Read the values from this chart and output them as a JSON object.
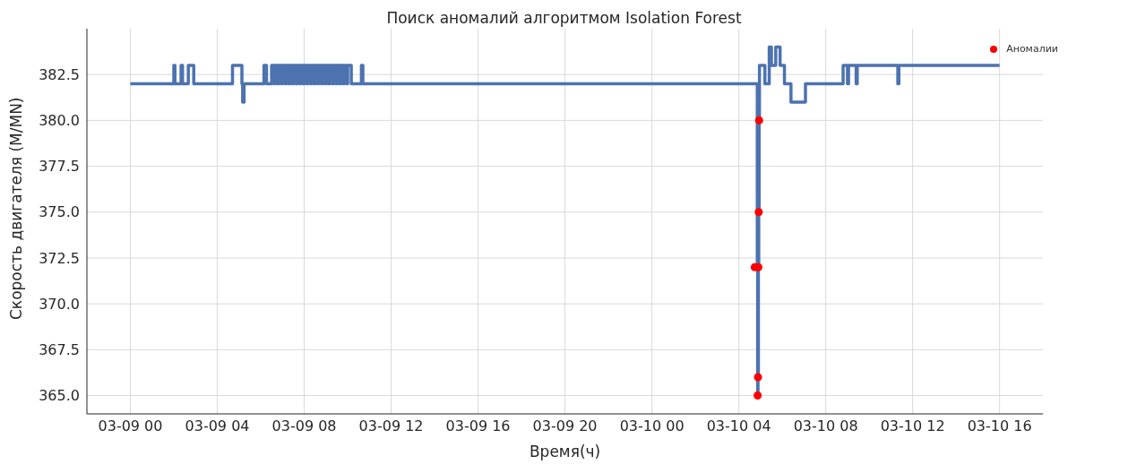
{
  "chart_data": {
    "type": "step",
    "title": "Поиск аномалий алгоритмом Isolation Forest",
    "xlabel": "Время(ч)",
    "ylabel": "Скорость двигателя (M/MN)",
    "xlim": [
      "--03-08T22:00",
      "--03-10T18:00"
    ],
    "xticks": [
      {
        "value": "--03-09T00:00",
        "label": "03-09 00"
      },
      {
        "value": "--03-09T04:00",
        "label": "03-09 04"
      },
      {
        "value": "--03-09T08:00",
        "label": "03-09 08"
      },
      {
        "value": "--03-09T12:00",
        "label": "03-09 12"
      },
      {
        "value": "--03-09T16:00",
        "label": "03-09 16"
      },
      {
        "value": "--03-09T20:00",
        "label": "03-09 20"
      },
      {
        "value": "--03-10T00:00",
        "label": "03-10 00"
      },
      {
        "value": "--03-10T04:00",
        "label": "03-10 04"
      },
      {
        "value": "--03-10T08:00",
        "label": "03-10 08"
      },
      {
        "value": "--03-10T12:00",
        "label": "03-10 12"
      },
      {
        "value": "--03-10T16:00",
        "label": "03-10 16"
      }
    ],
    "ylim": [
      364,
      385
    ],
    "yticks": [
      {
        "value": 365,
        "label": "365.0"
      },
      {
        "value": 367.5,
        "label": "367.5"
      },
      {
        "value": 370,
        "label": "370.0"
      },
      {
        "value": 372.5,
        "label": "372.5"
      },
      {
        "value": 375,
        "label": "375.0"
      },
      {
        "value": 377.5,
        "label": "377.5"
      },
      {
        "value": 380,
        "label": "380.0"
      },
      {
        "value": 382.5,
        "label": "382.5"
      }
    ],
    "grid": true,
    "legend": "top right",
    "series": [
      {
        "color": "#4c72b0",
        "x": [
          "--03-09T00:00",
          "--03-09T02:00",
          "--03-09T02:03",
          "--03-09T02:20",
          "--03-09T02:24",
          "--03-09T02:40",
          "--03-09T02:55",
          "--03-09T04:42",
          "--03-09T05:08",
          "--03-09T05:10",
          "--03-09T05:14",
          "--03-09T06:09",
          "--03-09T06:16",
          "--03-09T06:30",
          "--03-09T06:37",
          "--03-09T06:40",
          "--03-09T06:47",
          "--03-09T06:50",
          "--03-09T06:57",
          "--03-09T07:00",
          "--03-09T07:07",
          "--03-09T07:10",
          "--03-09T07:17",
          "--03-09T07:20",
          "--03-09T07:27",
          "--03-09T07:30",
          "--03-09T07:37",
          "--03-09T07:40",
          "--03-09T07:47",
          "--03-09T07:50",
          "--03-09T07:57",
          "--03-09T08:00",
          "--03-09T08:07",
          "--03-09T08:10",
          "--03-09T08:17",
          "--03-09T08:20",
          "--03-09T08:27",
          "--03-09T08:30",
          "--03-09T08:37",
          "--03-09T08:40",
          "--03-09T08:47",
          "--03-09T08:50",
          "--03-09T08:57",
          "--03-09T09:00",
          "--03-09T09:07",
          "--03-09T09:10",
          "--03-09T09:17",
          "--03-09T09:20",
          "--03-09T09:27",
          "--03-09T09:30",
          "--03-09T09:37",
          "--03-09T09:40",
          "--03-09T09:47",
          "--03-09T09:50",
          "--03-09T09:57",
          "--03-09T10:00",
          "--03-09T10:10",
          "--03-09T10:38",
          "--03-09T10:42",
          "--03-10T04:51",
          "--03-10T04:52",
          "--03-10T04:53",
          "--03-10T04:54",
          "--03-10T04:55",
          "--03-10T04:56",
          "--03-10T04:57",
          "--03-10T05:12",
          "--03-10T05:24",
          "--03-10T05:30",
          "--03-10T05:42",
          "--03-10T05:54",
          "--03-10T06:06",
          "--03-10T06:24",
          "--03-10T07:04",
          "--03-10T08:48",
          "--03-10T09:00",
          "--03-10T09:03",
          "--03-10T09:24",
          "--03-10T09:27",
          "--03-10T11:19",
          "--03-10T11:22",
          "--03-10T16:00"
        ],
        "values": [
          382,
          383,
          382,
          383,
          382,
          383,
          382,
          383,
          382,
          381,
          382,
          383,
          382,
          383,
          382,
          383,
          382,
          383,
          382,
          383,
          382,
          383,
          382,
          383,
          382,
          383,
          382,
          383,
          382,
          383,
          382,
          383,
          382,
          383,
          382,
          383,
          382,
          383,
          382,
          383,
          382,
          383,
          382,
          383,
          382,
          383,
          382,
          383,
          382,
          383,
          382,
          383,
          382,
          383,
          382,
          383,
          382,
          383,
          382,
          372,
          365,
          366,
          372,
          375,
          380,
          383,
          382,
          384,
          383,
          384,
          383,
          382,
          381,
          382,
          383,
          382,
          383,
          382,
          383,
          382,
          383,
          383
        ]
      },
      {
        "type": "scatter",
        "name": "Аномалии",
        "color": "#ff0000",
        "marker": "circle",
        "x": [
          "--03-10T04:44",
          "--03-10T04:52",
          "--03-10T04:53",
          "--03-10T04:54",
          "--03-10T04:55",
          "--03-10T04:56"
        ],
        "values": [
          372,
          365,
          366,
          372,
          375,
          380
        ]
      }
    ]
  }
}
